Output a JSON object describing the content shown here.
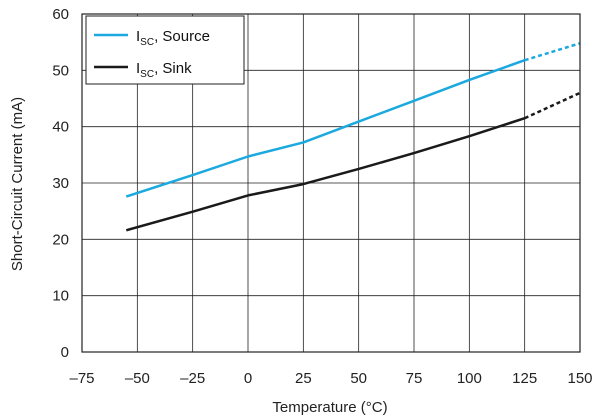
{
  "chart_data": {
    "type": "line",
    "xlabel": "Temperature (°C)",
    "ylabel": "Short-Circuit Current (mA)",
    "xlim": [
      -75,
      150
    ],
    "ylim": [
      0,
      60
    ],
    "x_ticks": [
      -75,
      -50,
      -25,
      0,
      25,
      50,
      75,
      100,
      125,
      150
    ],
    "x_tick_labels": [
      "–75",
      "–50",
      "–25",
      "0",
      "25",
      "50",
      "75",
      "100",
      "125",
      "150"
    ],
    "y_ticks": [
      0,
      10,
      20,
      30,
      40,
      50,
      60
    ],
    "y_tick_labels": [
      "0",
      "10",
      "20",
      "30",
      "40",
      "50",
      "60"
    ],
    "grid": true,
    "legend_placement": "top-left",
    "series": [
      {
        "name": "I_SC, Source",
        "legend_main": "I",
        "legend_sub": "SC",
        "legend_suffix": ", Source",
        "color": "#1ba9e0",
        "x": [
          -55,
          -25,
          0,
          25,
          50,
          75,
          100,
          125
        ],
        "y": [
          27.6,
          31.4,
          34.7,
          37.2,
          40.9,
          44.6,
          48.3,
          51.8
        ],
        "extrapolated": {
          "x": [
            125,
            150
          ],
          "y": [
            51.8,
            54.8
          ]
        }
      },
      {
        "name": "I_SC, Sink",
        "legend_main": "I",
        "legend_sub": "SC",
        "legend_suffix": ", Sink",
        "color": "#1a1a1a",
        "x": [
          -55,
          -25,
          0,
          25,
          50,
          75,
          100,
          125
        ],
        "y": [
          21.6,
          24.9,
          27.8,
          29.8,
          32.5,
          35.3,
          38.3,
          41.5
        ],
        "extrapolated": {
          "x": [
            125,
            150
          ],
          "y": [
            41.5,
            46.0
          ]
        }
      }
    ]
  }
}
